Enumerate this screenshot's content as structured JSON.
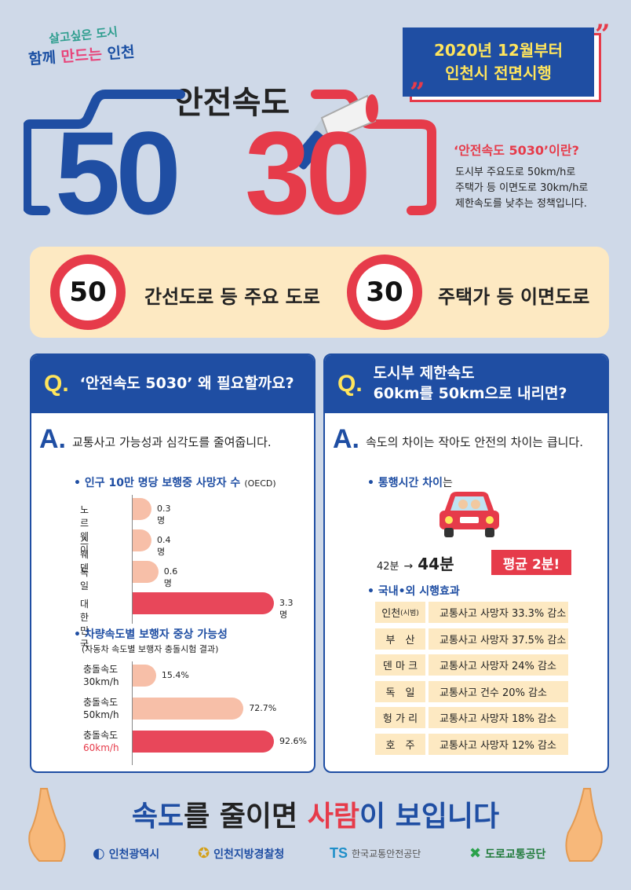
{
  "header": {
    "slogan_line1": "살고싶은 도시",
    "slogan_line2_a": "함께 ",
    "slogan_line2_b": "만드는",
    "slogan_line2_c": " 인천",
    "date_line1": "2020년 12월부터",
    "date_line2": "인천시 전면시행",
    "quote_open": "”",
    "quote_close": "”",
    "main_title": "안전속도",
    "big_50": "50",
    "big_30": "30"
  },
  "definition": {
    "title": "‘안전속도 5030’이란?",
    "line1": "도시부 주요도로 50km/h로",
    "line2": "주택가 등 이면도로 30km/h로",
    "line3": "제한속도를 낮추는 정책입니다."
  },
  "speed_band": {
    "sign1": "50",
    "label1": "간선도로 등 주요 도로",
    "sign2": "30",
    "label2": "주택가 등 이면도로"
  },
  "left_panel": {
    "q_letter": "Q.",
    "question": "‘안전속도 5030’ 왜 필요할까요?",
    "a_letter": "A.",
    "answer": "교통사고 가능성과 심각도를 줄여줍니다.",
    "chart1_title": "• 인구 10만 명당 보행중 사망자 수",
    "chart1_note": "(OECD)",
    "chart2_title": "• 차량속도별 보행자 중상 가능성",
    "chart2_note": "(자동차 속도별 보행자 충돌시험 결과)"
  },
  "right_panel": {
    "q_letter": "Q.",
    "question_line1": "도시부 제한속도",
    "question_line2": "60km를 50km으로 내리면?",
    "a_letter": "A.",
    "answer": "속도의 차이는 작아도 안전의 차이는 큽니다.",
    "travel_title": "• 통행시간 차이",
    "travel_suffix": "는",
    "travel_from": "42분",
    "travel_arrow": "→",
    "travel_to": "44분",
    "avg_badge": "평균 2분!",
    "effects_title": "• 국내•외 시행효과",
    "effects": [
      {
        "country": "인천",
        "country_note": "(시범)",
        "desc": "교통사고 사망자 33.3% 감소"
      },
      {
        "country": "부　산",
        "country_note": "",
        "desc": "교통사고 사망자 37.5% 감소"
      },
      {
        "country": "덴 마 크",
        "country_note": "",
        "desc": "교통사고 사망자 24% 감소"
      },
      {
        "country": "독　일",
        "country_note": "",
        "desc": "교통사고 건수 20% 감소"
      },
      {
        "country": "헝 가 리",
        "country_note": "",
        "desc": "교통사고 사망자 18% 감소"
      },
      {
        "country": "호　주",
        "country_note": "",
        "desc": "교통사고 사망자 12% 감소"
      }
    ]
  },
  "chart_data": [
    {
      "type": "bar",
      "title": "인구 10만 명당 보행중 사망자 수",
      "categories": [
        "노 르 웨 이",
        "스　웨　덴",
        "독　　일",
        "대 한 민 국"
      ],
      "values": [
        0.3,
        0.4,
        0.6,
        3.3
      ],
      "value_labels": [
        "0.3명",
        "0.4명",
        "0.6명",
        "3.3명"
      ],
      "colors": [
        "#f7bfa8",
        "#f7bfa8",
        "#f7bfa8",
        "#e8475a"
      ]
    },
    {
      "type": "bar",
      "title": "차량속도별 보행자 중상 가능성",
      "categories": [
        {
          "line1": "충돌속도",
          "line2": "30km/h",
          "highlight": false
        },
        {
          "line1": "충돌속도",
          "line2": "50km/h",
          "highlight": false
        },
        {
          "line1": "충돌속도",
          "line2": "60km/h",
          "highlight": true
        }
      ],
      "values": [
        15.4,
        72.7,
        92.6
      ],
      "value_labels": [
        "15.4%",
        "72.7%",
        "92.6%"
      ],
      "colors": [
        "#f7bfa8",
        "#f7bfa8",
        "#e8475a"
      ]
    }
  ],
  "footer": {
    "slogan_a": "속도",
    "slogan_b": "를 줄이면 ",
    "slogan_c": "사람",
    "slogan_d": "이 보입니다",
    "logos": [
      "인천광역시",
      "인천지방경찰청",
      "한국교통안전공단",
      "도로교통공단"
    ],
    "logo_ts": "TS"
  },
  "colors": {
    "blue": "#1f4ea3",
    "red": "#e63b4a",
    "yellow": "#ffe55c",
    "cream": "#fde9c2",
    "background": "#cfd9e8"
  }
}
